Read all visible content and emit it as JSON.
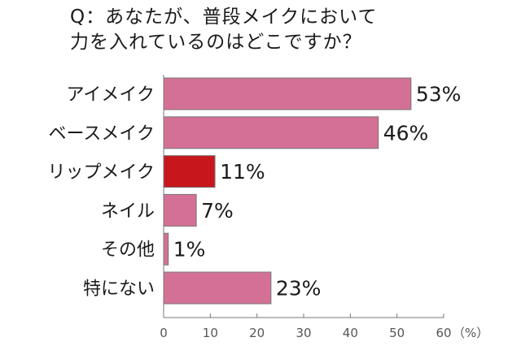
{
  "title_lines": [
    "Q：あなたが、普段メイクにおいて",
    "力を入れているのはどこですか？"
  ],
  "chart_data": {
    "type": "bar",
    "orientation": "horizontal",
    "categories": [
      "アイメイク",
      "ベースメイク",
      "リップメイク",
      "ネイル",
      "その他",
      "特にない"
    ],
    "values": [
      53,
      46,
      11,
      7,
      1,
      23
    ],
    "value_labels": [
      "53%",
      "46%",
      "11%",
      "7%",
      "1%",
      "23%"
    ],
    "xlim": [
      0,
      60
    ],
    "xticks": [
      0,
      10,
      20,
      30,
      40,
      50,
      60
    ],
    "xunit": "（%）",
    "highlight_index": 2,
    "colors": {
      "bar": "#d47095",
      "highlight": "#c8161d",
      "stroke": "#777777"
    }
  }
}
